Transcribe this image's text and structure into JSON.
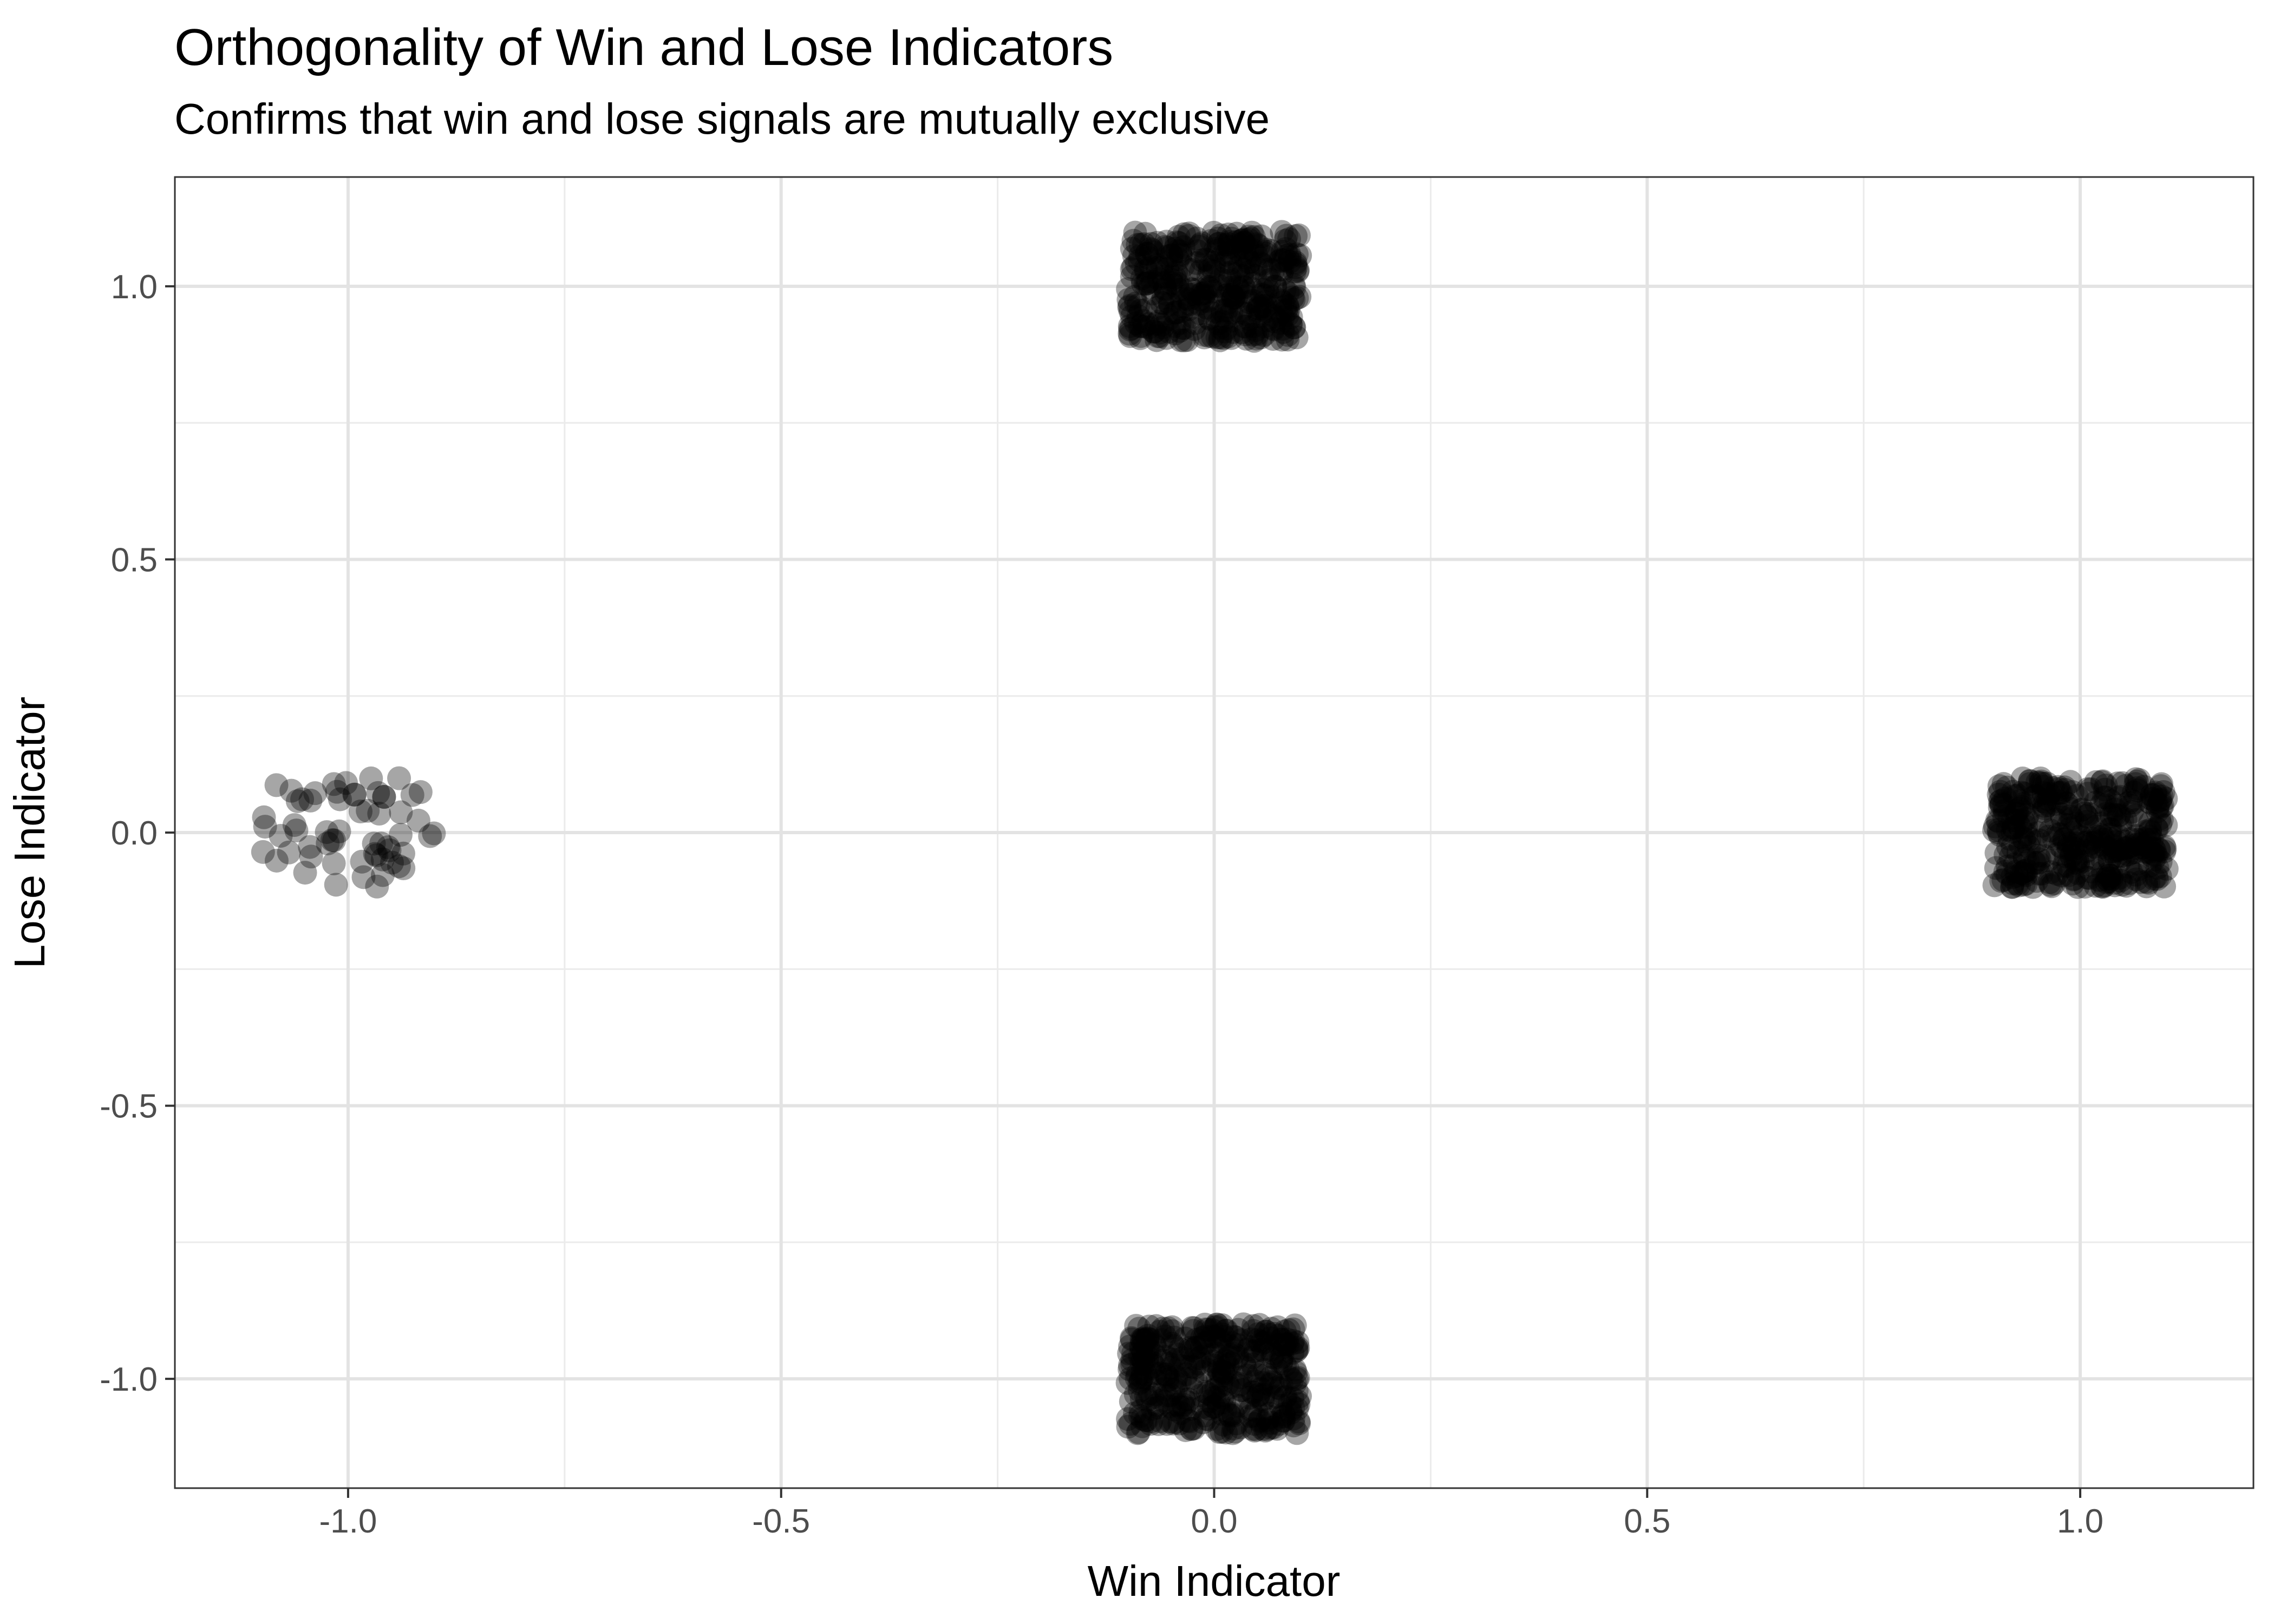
{
  "chart_data": {
    "type": "scatter",
    "title": "Orthogonality of Win and Lose Indicators",
    "subtitle": "Confirms that win and lose signals are mutually exclusive",
    "xlabel": "Win Indicator",
    "ylabel": "Lose Indicator",
    "xlim": [
      -1.2,
      1.2
    ],
    "ylim": [
      -1.2,
      1.2
    ],
    "x_ticks": [
      -1.0,
      -0.5,
      0.0,
      0.5,
      1.0
    ],
    "x_tick_labels": [
      "-1.0",
      "-0.5",
      "0.0",
      "0.5",
      "1.0"
    ],
    "y_ticks": [
      -1.0,
      -0.5,
      0.0,
      0.5,
      1.0
    ],
    "y_tick_labels": [
      "-1.0",
      "-0.5",
      "0.0",
      "0.5",
      "1.0"
    ],
    "grid": true,
    "jitter": 0.1,
    "point_color": "#000000",
    "point_opacity": 0.35,
    "clusters": [
      {
        "x": -1.0,
        "y": 0.0,
        "n": 60
      },
      {
        "x": 0.0,
        "y": 1.0,
        "n": 400
      },
      {
        "x": 1.0,
        "y": 0.0,
        "n": 400
      },
      {
        "x": 0.0,
        "y": -1.0,
        "n": 400
      }
    ]
  }
}
